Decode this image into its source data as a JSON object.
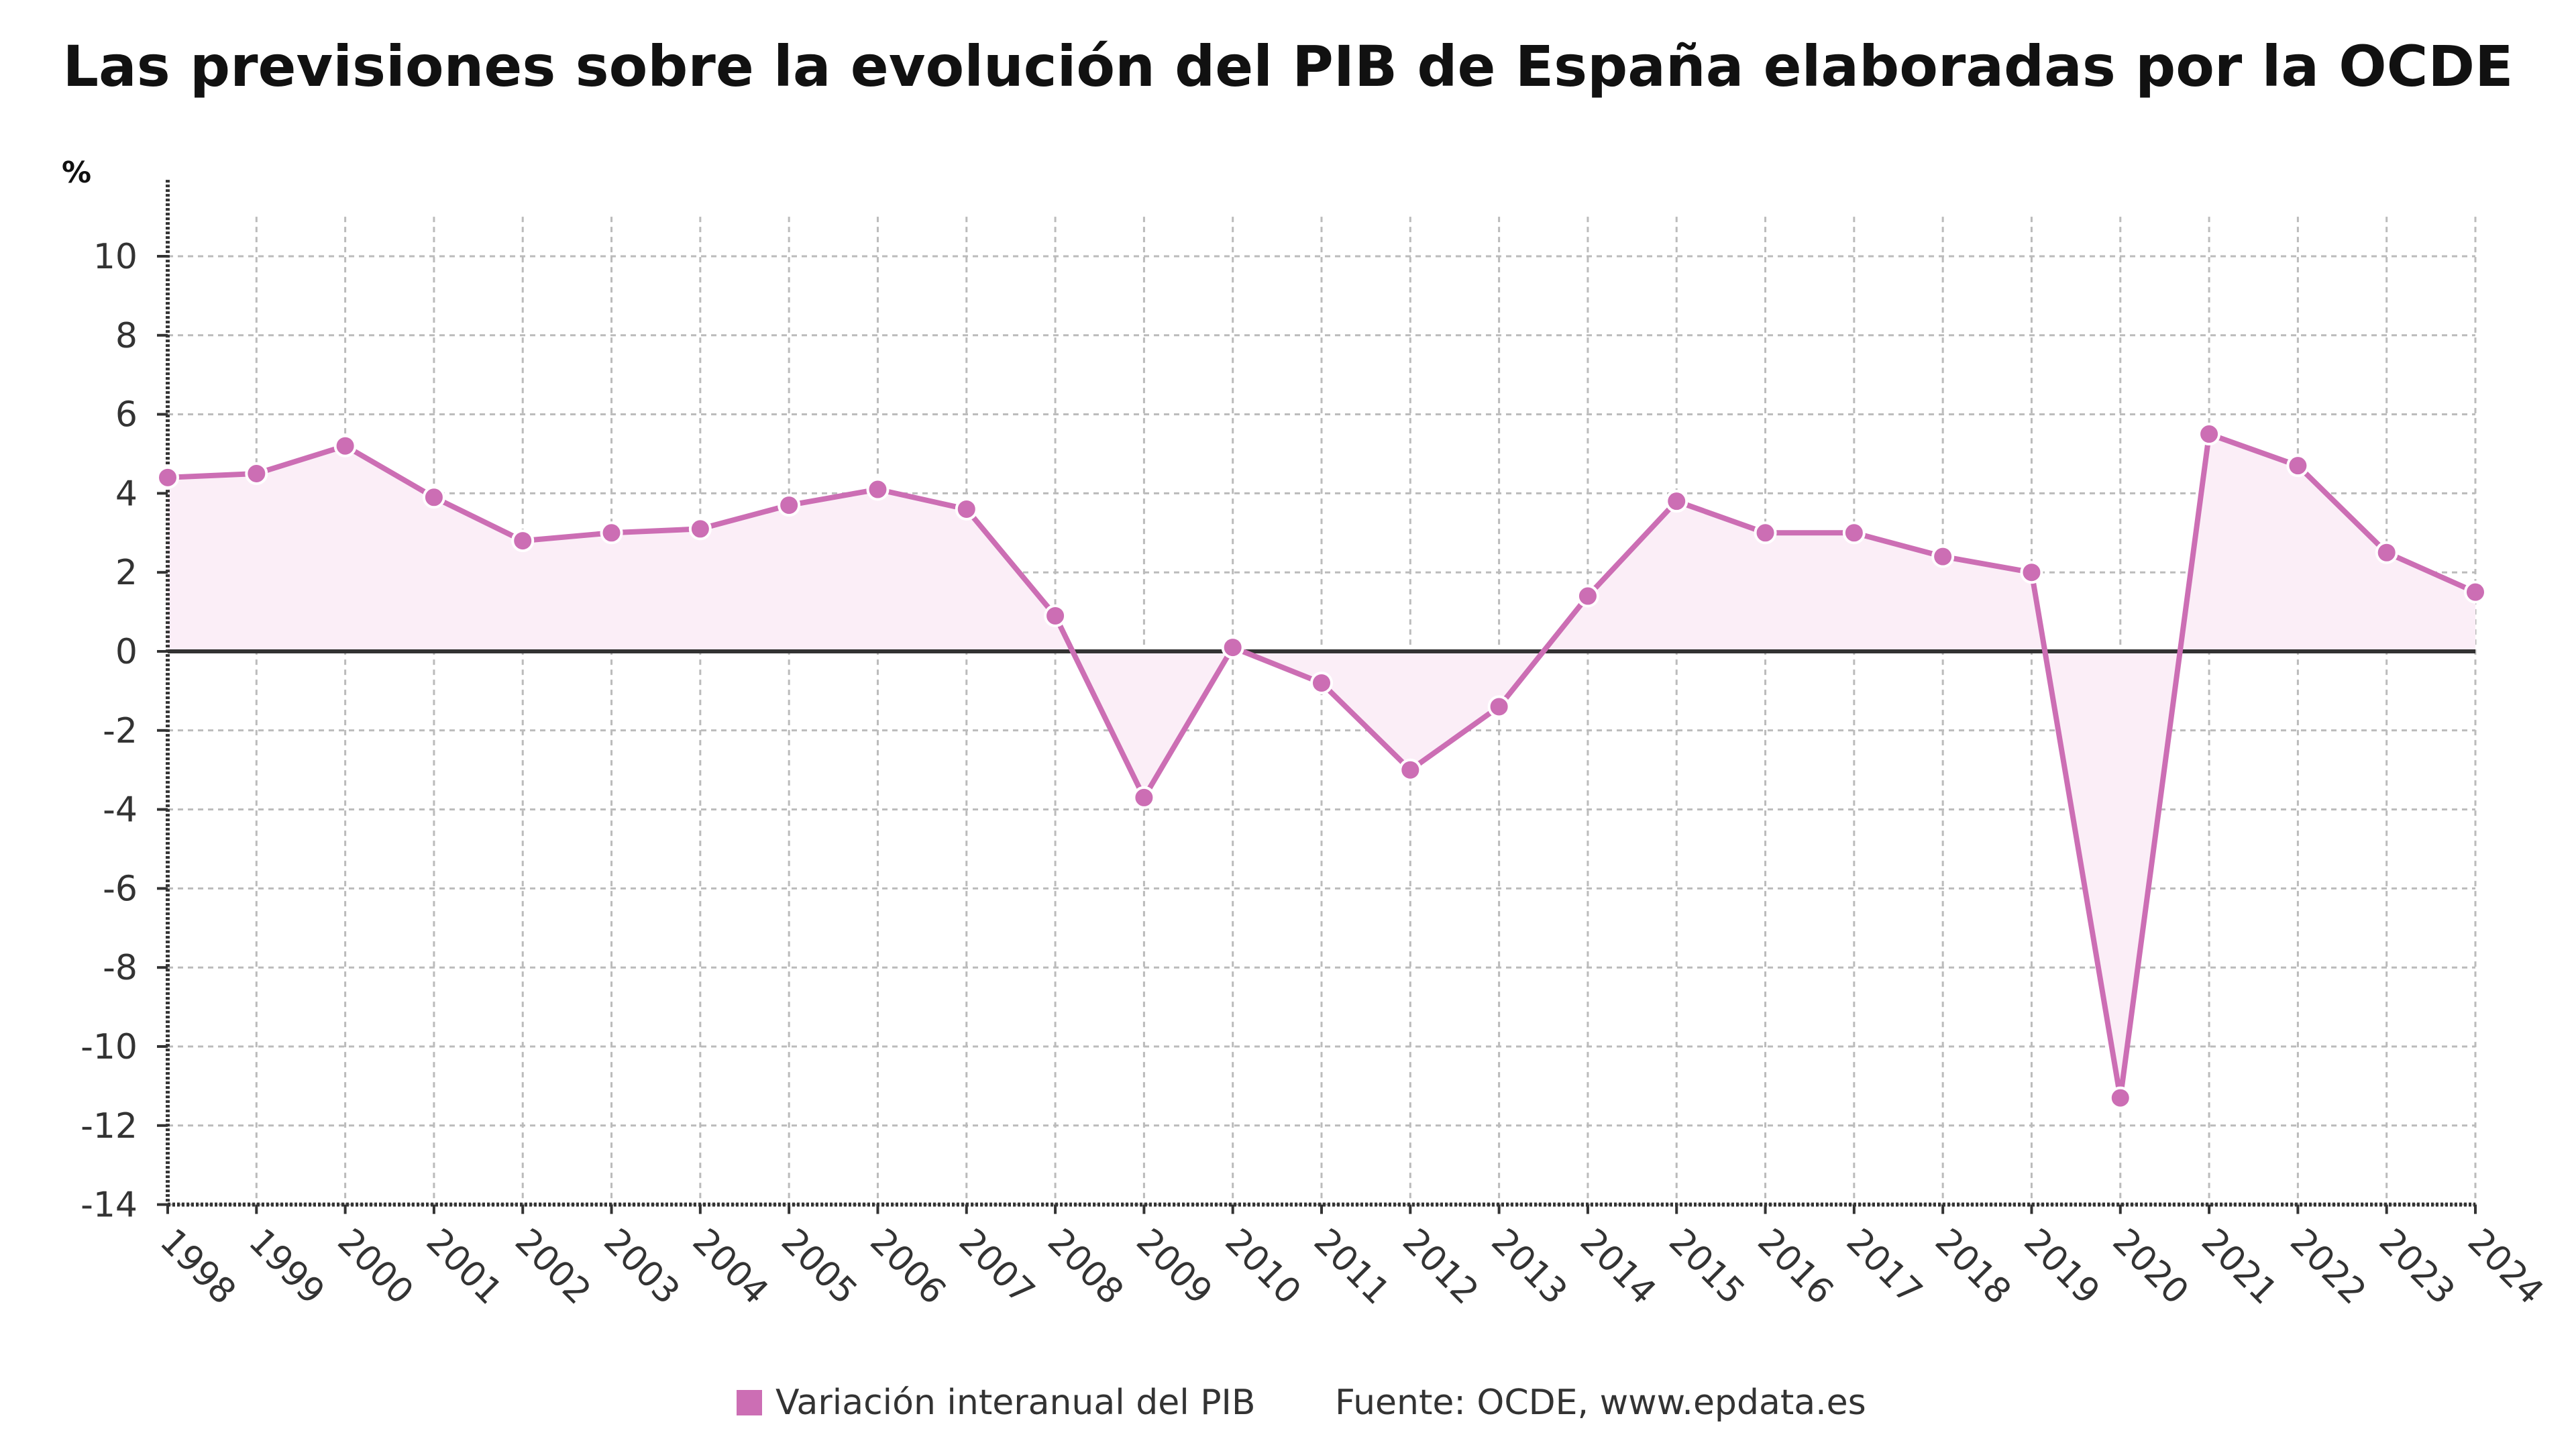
{
  "title": "Las previsiones sobre la evolución del PIB de España elaboradas por la OCDE",
  "unit_label": "%",
  "legend": {
    "series_label": "Variación interanual del PIB",
    "source": "Fuente: OCDE, www.epdata.es"
  },
  "colors": {
    "series": "#cc6eb4",
    "area": "#fbeef7",
    "zero_line": "#333333",
    "grid": "#bbbbbb",
    "axis": "#333333"
  },
  "chart_data": {
    "type": "line",
    "title": "Las previsiones sobre la evolución del PIB de España elaboradas por la OCDE",
    "xlabel": "",
    "ylabel": "%",
    "ylim": [
      -14,
      11
    ],
    "yticks": [
      10,
      8,
      6,
      4,
      2,
      0,
      -2,
      -4,
      -6,
      -8,
      -10,
      -12,
      -14
    ],
    "grid": true,
    "legend_position": "bottom-center",
    "categories": [
      "1998",
      "1999",
      "2000",
      "2001",
      "2002",
      "2003",
      "2004",
      "2005",
      "2006",
      "2007",
      "2008",
      "2009",
      "2010",
      "2011",
      "2012",
      "2013",
      "2014",
      "2015",
      "2016",
      "2017",
      "2018",
      "2019",
      "2020",
      "2021",
      "2022",
      "2023",
      "2024"
    ],
    "series": [
      {
        "name": "Variación interanual del PIB",
        "values": [
          4.4,
          4.5,
          5.2,
          3.9,
          2.8,
          3.0,
          3.1,
          3.7,
          4.1,
          3.6,
          0.9,
          -3.7,
          0.1,
          -0.8,
          -3.0,
          -1.4,
          1.4,
          3.8,
          3.0,
          3.0,
          2.4,
          2.0,
          -11.3,
          5.5,
          4.7,
          2.5,
          1.5
        ]
      }
    ]
  }
}
